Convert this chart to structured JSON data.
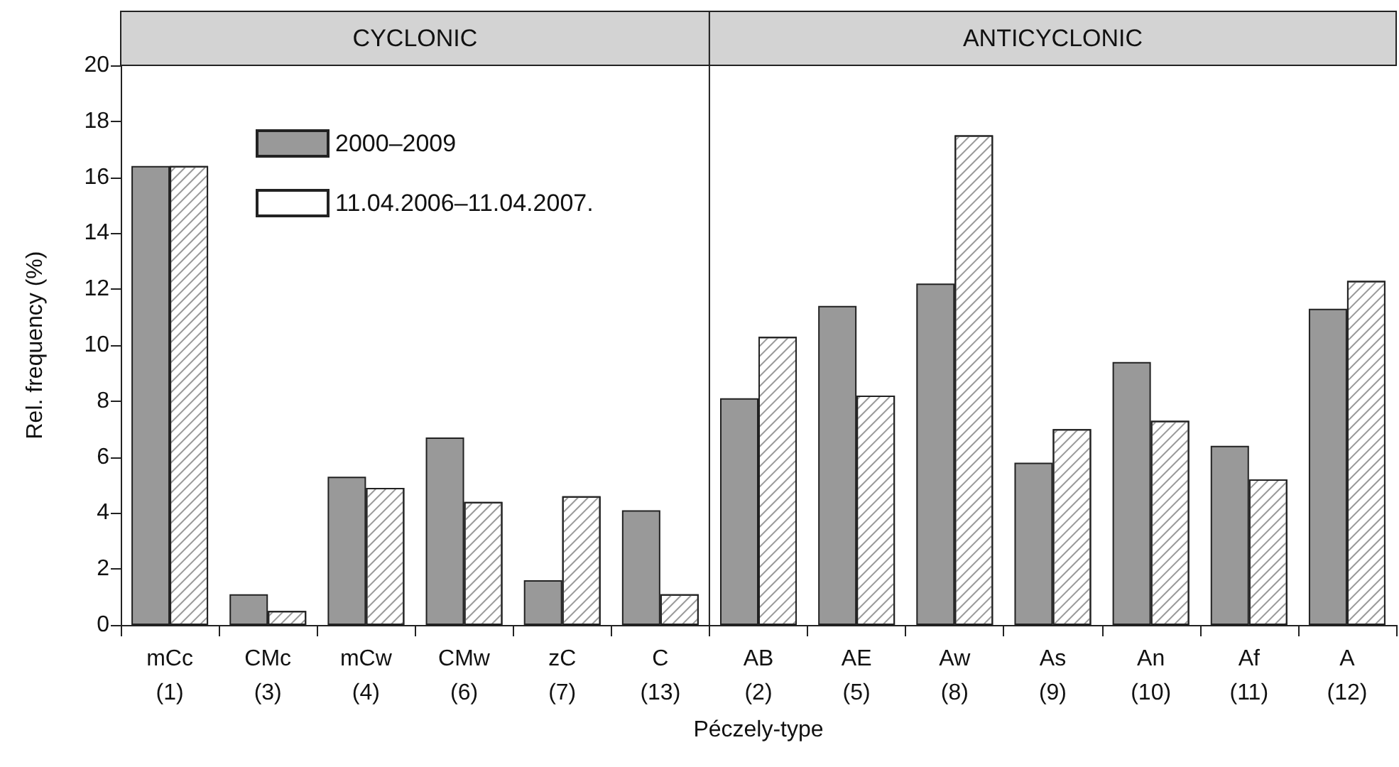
{
  "chart_data": {
    "type": "bar",
    "xlabel": "Péczely-type",
    "ylabel": "Rel. frequency (%)",
    "categories": [
      "mCc\n(1)",
      "CMc\n(3)",
      "mCw\n(4)",
      "CMw\n(6)",
      "zC\n(7)",
      "C\n(13)",
      "AB\n(2)",
      "AE\n(5)",
      "Aw\n(8)",
      "As\n(9)",
      "An\n(10)",
      "Af\n(11)",
      "A\n(12)"
    ],
    "series": [
      {
        "name": "2000–2009",
        "color": "#999999",
        "values": [
          16.4,
          1.1,
          5.3,
          6.7,
          1.6,
          4.1,
          8.1,
          11.4,
          12.2,
          5.8,
          9.4,
          6.4,
          11.3
        ]
      },
      {
        "name": "11.04.2006–11.04.2007.",
        "color": "#ffffff",
        "values": [
          16.4,
          0.5,
          4.9,
          4.4,
          4.6,
          1.1,
          10.3,
          8.2,
          17.5,
          7.0,
          7.3,
          5.2,
          12.3
        ]
      }
    ],
    "annotations": [
      "CYCLONIC",
      "ANTICYCLONIC"
    ],
    "ylim": [
      0,
      20
    ],
    "yticks": [
      0,
      2,
      4,
      6,
      8,
      10,
      12,
      14,
      16,
      18,
      20
    ],
    "grid": false,
    "legend": "top left"
  }
}
